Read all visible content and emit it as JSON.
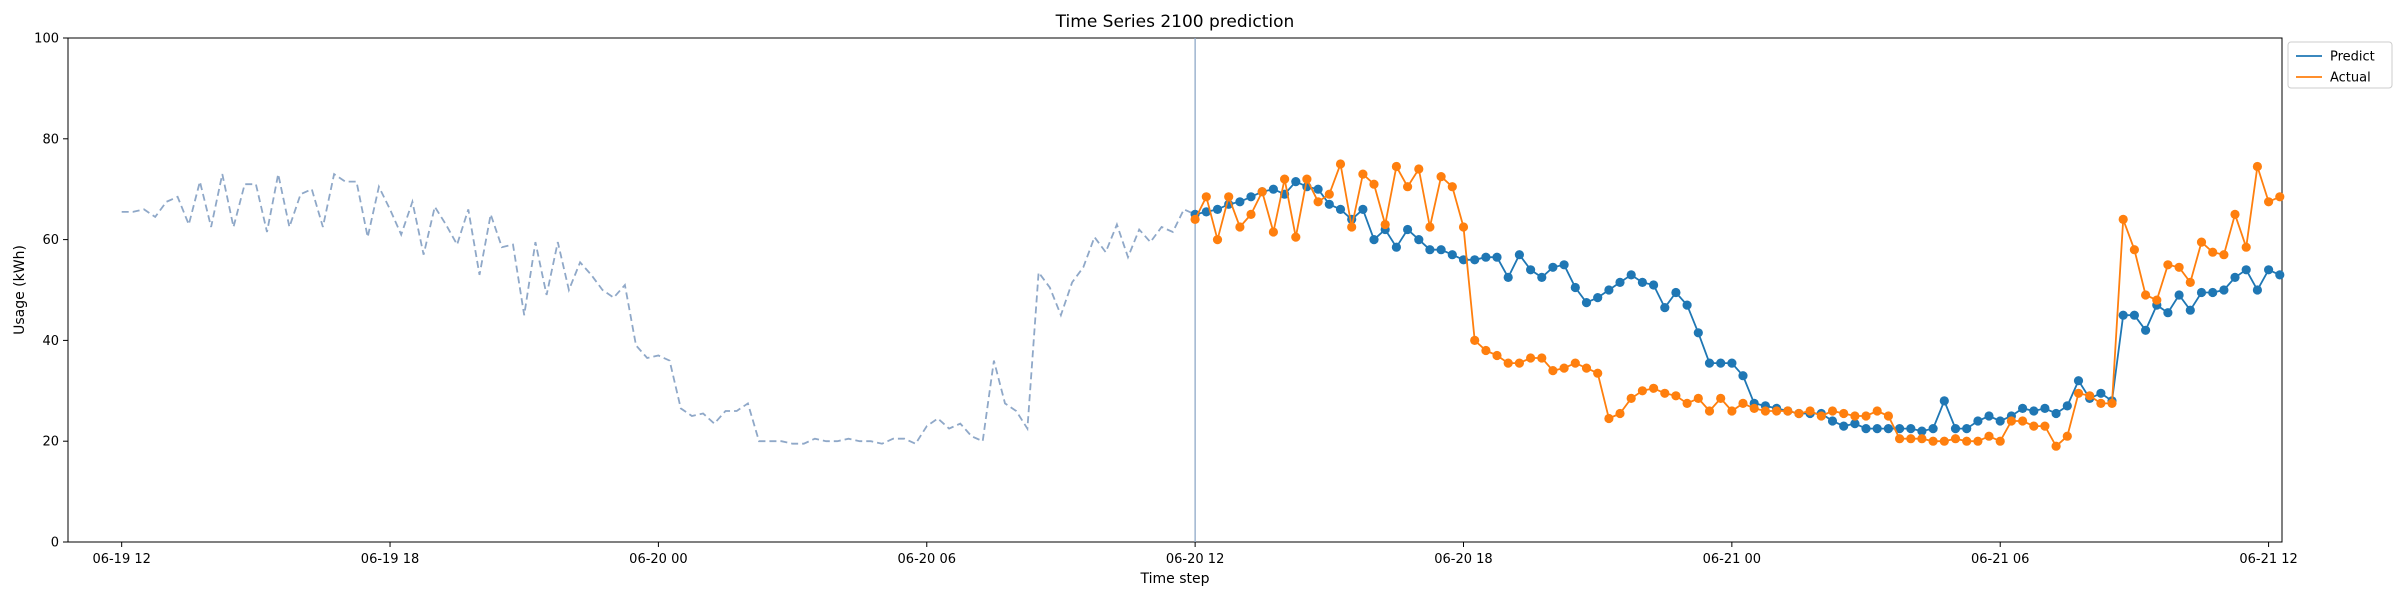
{
  "chart_data": {
    "type": "line",
    "title": "Time Series 2100 prediction",
    "xlabel": "Time step",
    "ylabel": "Usage (kWh)",
    "ylim": [
      0,
      100
    ],
    "xlim_hours": [
      -1.2,
      48.3
    ],
    "x_unit": "hours since 06-19 12:00",
    "yticks": [
      0,
      20,
      40,
      60,
      80,
      100
    ],
    "xticks": [
      {
        "h": 0,
        "label": "06-19 12"
      },
      {
        "h": 6,
        "label": "06-19 18"
      },
      {
        "h": 12,
        "label": "06-20 00"
      },
      {
        "h": 18,
        "label": "06-20 06"
      },
      {
        "h": 24,
        "label": "06-20 12"
      },
      {
        "h": 30,
        "label": "06-20 18"
      },
      {
        "h": 36,
        "label": "06-21 00"
      },
      {
        "h": 42,
        "label": "06-21 06"
      },
      {
        "h": 48,
        "label": "06-21 12"
      }
    ],
    "vline_h": 24,
    "grid": false,
    "legend_position": "upper right outside",
    "colors": {
      "history": "#8fa8c8",
      "predict": "#1f77b4",
      "actual": "#ff7f0e",
      "vline": "#8fa8c8"
    },
    "history": {
      "start_h": 0,
      "step_h": 0.25,
      "values": [
        65.5,
        65.5,
        66.0,
        64.5,
        67.5,
        68.5,
        63.0,
        71.5,
        62.5,
        73.0,
        62.5,
        71.0,
        71.0,
        61.5,
        73.0,
        62.5,
        69.0,
        70.0,
        62.5,
        73.0,
        71.5,
        71.5,
        60.5,
        70.5,
        66.0,
        61.0,
        67.5,
        57.0,
        66.5,
        63.0,
        59.0,
        66.0,
        53.0,
        65.0,
        58.5,
        59.0,
        45.0,
        59.5,
        49.0,
        59.5,
        50.0,
        55.5,
        53.0,
        50.0,
        48.5,
        51.0,
        39.0,
        36.5,
        37.0,
        36.0,
        26.5,
        25.0,
        25.5,
        23.5,
        26.0,
        26.0,
        27.5,
        20.0,
        20.0,
        20.0,
        19.5,
        19.5,
        20.5,
        20.0,
        20.0,
        20.5,
        20.0,
        20.0,
        19.5,
        20.5,
        20.5,
        19.5,
        23.0,
        24.5,
        22.5,
        23.5,
        21.0,
        20.0,
        36.0,
        27.5,
        26.0,
        22.5,
        53.5,
        50.5,
        45.0,
        51.5,
        54.5,
        60.5,
        57.5,
        63.0,
        56.5,
        62.0,
        59.5,
        62.5,
        61.5,
        66.0,
        65.0
      ]
    },
    "series": [
      {
        "name": "Predict",
        "start_h": 24,
        "step_h": 0.25,
        "values": [
          65.0,
          65.5,
          66.0,
          67.0,
          67.5,
          68.5,
          69.5,
          70.0,
          69.0,
          71.5,
          70.5,
          70.0,
          67.0,
          66.0,
          64.0,
          66.0,
          60.0,
          62.0,
          58.5,
          62.0,
          60.0,
          58.0,
          58.0,
          57.0,
          56.0,
          56.0,
          56.5,
          56.5,
          52.5,
          57.0,
          54.0,
          52.5,
          54.5,
          55.0,
          50.5,
          47.5,
          48.5,
          50.0,
          51.5,
          53.0,
          51.5,
          51.0,
          46.5,
          49.5,
          47.0,
          41.5,
          35.5,
          35.5,
          35.5,
          33.0,
          27.5,
          27.0,
          26.5,
          26.0,
          25.5,
          25.5,
          25.5,
          24.0,
          23.0,
          23.5,
          22.5,
          22.5,
          22.5,
          22.5,
          22.5,
          22.0,
          22.5,
          28.0,
          22.5,
          22.5,
          24.0,
          25.0,
          24.0,
          25.0,
          26.5,
          26.0,
          26.5,
          25.5,
          27.0,
          32.0,
          28.5,
          29.5,
          28.0,
          45.0,
          45.0,
          42.0,
          47.0,
          45.5,
          49.0,
          46.0,
          49.5,
          49.5,
          50.0,
          52.5,
          54.0,
          50.0,
          54.0,
          53.0
        ]
      },
      {
        "name": "Actual",
        "start_h": 24,
        "step_h": 0.25,
        "values": [
          64.0,
          68.5,
          60.0,
          68.5,
          62.5,
          65.0,
          69.5,
          61.5,
          72.0,
          60.5,
          72.0,
          67.5,
          69.0,
          75.0,
          62.5,
          73.0,
          71.0,
          63.0,
          74.5,
          70.5,
          74.0,
          62.5,
          72.5,
          70.5,
          62.5,
          40.0,
          38.0,
          37.0,
          35.5,
          35.5,
          36.5,
          36.5,
          34.0,
          34.5,
          35.5,
          34.5,
          33.5,
          24.5,
          25.5,
          28.5,
          30.0,
          30.5,
          29.5,
          29.0,
          27.5,
          28.5,
          26.0,
          28.5,
          26.0,
          27.5,
          26.5,
          26.0,
          26.0,
          26.0,
          25.5,
          26.0,
          25.0,
          26.0,
          25.5,
          25.0,
          25.0,
          26.0,
          25.0,
          20.5,
          20.5,
          20.5,
          20.0,
          20.0,
          20.5,
          20.0,
          20.0,
          21.0,
          20.0,
          24.0,
          24.0,
          23.0,
          23.0,
          19.0,
          21.0,
          29.5,
          29.0,
          27.5,
          27.5,
          64.0,
          58.0,
          49.0,
          48.0,
          55.0,
          54.5,
          51.5,
          59.5,
          57.5,
          57.0,
          65.0,
          58.5,
          74.5,
          67.5,
          68.5
        ]
      }
    ]
  }
}
